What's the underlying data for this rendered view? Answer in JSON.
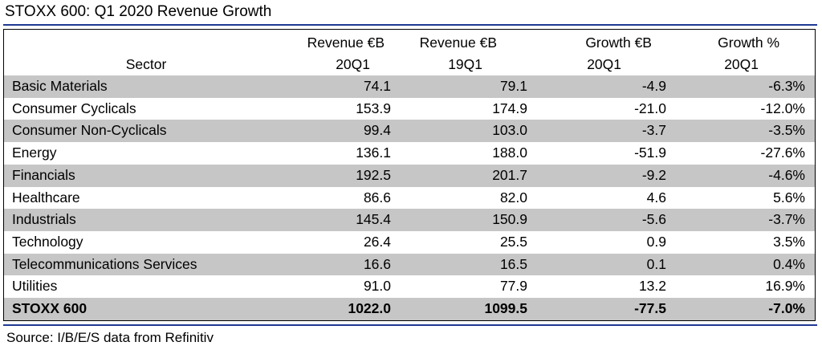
{
  "title": "STOXX 600: Q1 2020 Revenue Growth",
  "source": "Source: I/B/E/S data from Refinitiv",
  "colors": {
    "rule": "#1f3a93",
    "shade": "#c6c6c6"
  },
  "headers": {
    "sector": "Sector",
    "col1": [
      "Revenue €B",
      "20Q1"
    ],
    "col2": [
      "Revenue €B",
      "19Q1"
    ],
    "col3": [
      "Growth €B",
      "20Q1"
    ],
    "col4": [
      "Growth %",
      "20Q1"
    ]
  },
  "chart_data": {
    "type": "table",
    "title": "STOXX 600: Q1 2020 Revenue Growth",
    "columns": [
      "Sector",
      "Revenue €B 20Q1",
      "Revenue €B 19Q1",
      "Growth €B 20Q1",
      "Growth % 20Q1"
    ],
    "rows": [
      [
        "Basic Materials",
        "74.1",
        "79.1",
        "-4.9",
        "-6.3%"
      ],
      [
        "Consumer Cyclicals",
        "153.9",
        "174.9",
        "-21.0",
        "-12.0%"
      ],
      [
        "Consumer Non-Cyclicals",
        "99.4",
        "103.0",
        "-3.7",
        "-3.5%"
      ],
      [
        "Energy",
        "136.1",
        "188.0",
        "-51.9",
        "-27.6%"
      ],
      [
        "Financials",
        "192.5",
        "201.7",
        "-9.2",
        "-4.6%"
      ],
      [
        "Healthcare",
        "86.6",
        "82.0",
        "4.6",
        "5.6%"
      ],
      [
        "Industrials",
        "145.4",
        "150.9",
        "-5.6",
        "-3.7%"
      ],
      [
        "Technology",
        "26.4",
        "25.5",
        "0.9",
        "3.5%"
      ],
      [
        "Telecommunications Services",
        "16.6",
        "16.5",
        "0.1",
        "0.4%"
      ],
      [
        "Utilities",
        "91.0",
        "77.9",
        "13.2",
        "16.9%"
      ]
    ],
    "total": [
      "STOXX 600",
      "1022.0",
      "1099.5",
      "-77.5",
      "-7.0%"
    ]
  }
}
